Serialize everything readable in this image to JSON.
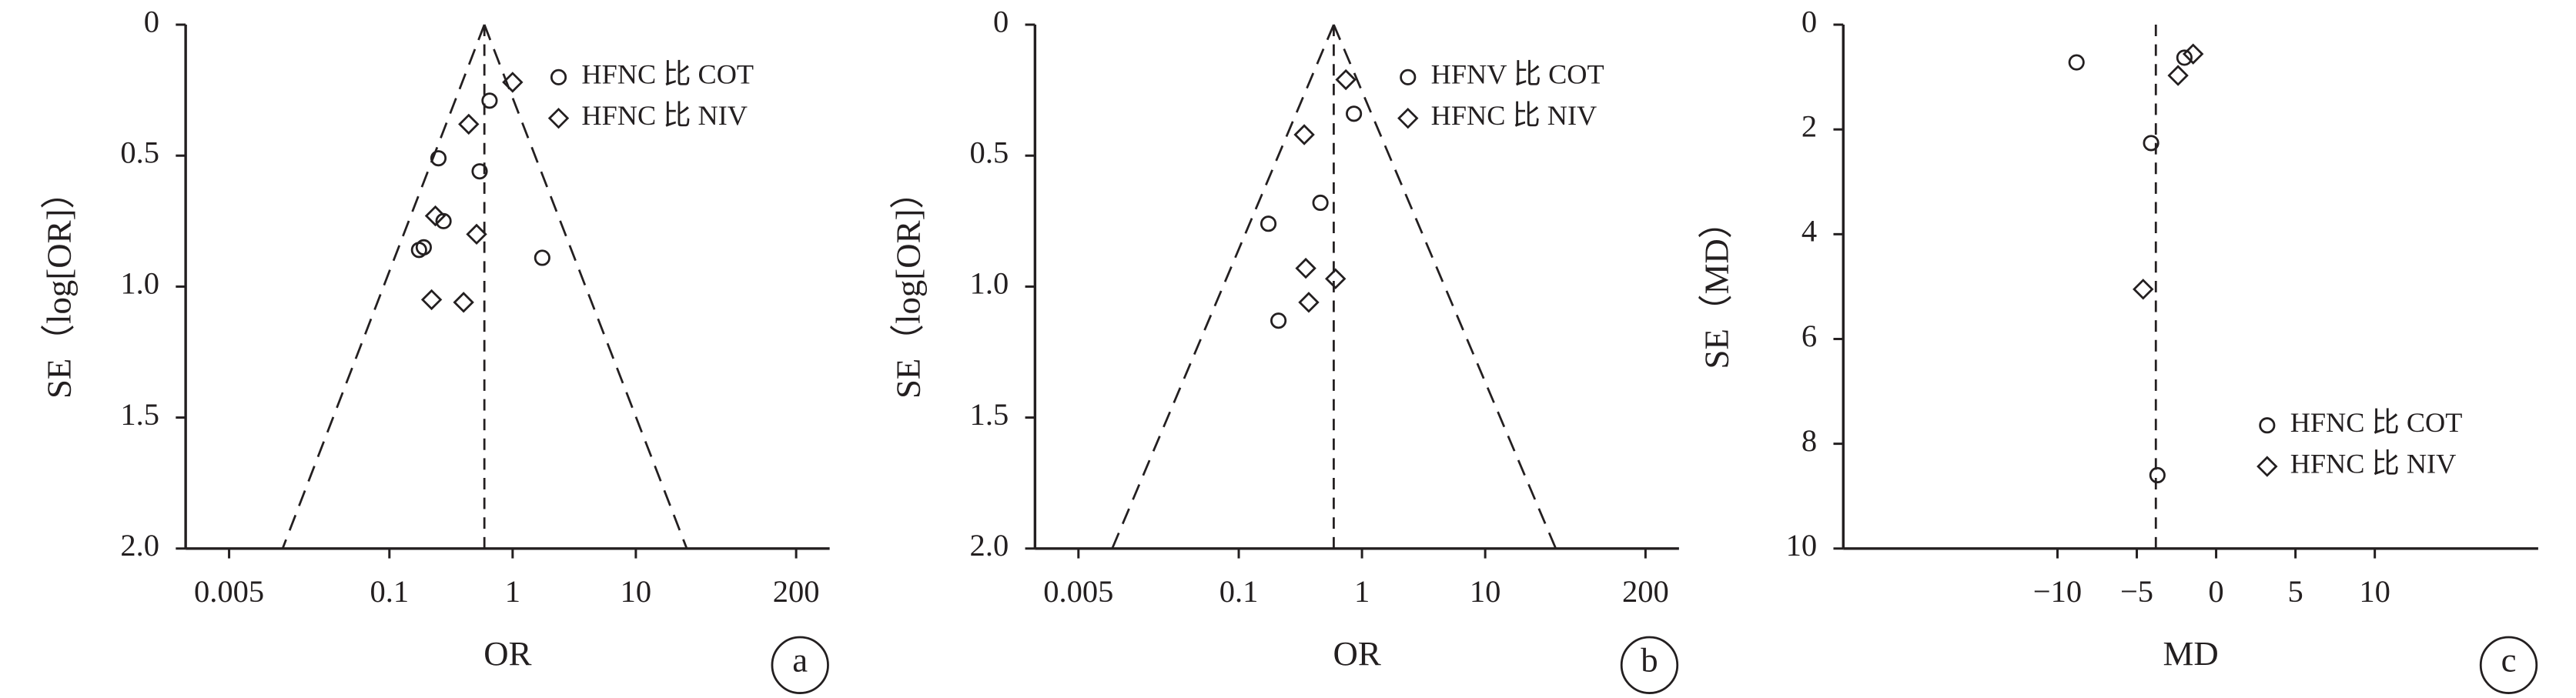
{
  "chart_data": [
    {
      "type": "scatter",
      "panel_label": "a",
      "xlabel": "OR",
      "ylabel": "SE（log[OR]）",
      "x_scale": "log",
      "y_inverted": true,
      "xlim": [
        0.00222,
        374
      ],
      "ylim": [
        0,
        2
      ],
      "xticks": [
        0.005,
        0.1,
        1,
        10,
        200
      ],
      "yticks": [
        0,
        0.5,
        {
          "value": 1,
          "label": "1.0"
        },
        1.5,
        {
          "value": 2,
          "label": "2.0"
        }
      ],
      "reference_line": 0.59,
      "funnel": [
        {
          "x": [
            0.59,
            0.0136
          ],
          "y": [
            0,
            2
          ]
        },
        {
          "x": [
            0.59,
            25.9
          ],
          "y": [
            0,
            2
          ]
        }
      ],
      "legend": "upper right",
      "series": [
        {
          "name": "HFNC 比 COT",
          "marker": "circle",
          "color": "#231f20",
          "x": [
            0.65,
            0.54,
            0.25,
            0.275,
            0.19,
            0.174,
            1.74
          ],
          "values": [
            0.29,
            0.56,
            0.51,
            0.75,
            0.85,
            0.86,
            0.89
          ]
        },
        {
          "name": "HFNC 比 NIV",
          "marker": "diamond",
          "color": "#231f20",
          "x": [
            1.0,
            0.44,
            0.236,
            0.51,
            0.22,
            0.4
          ],
          "values": [
            0.22,
            0.38,
            0.73,
            0.8,
            1.05,
            1.06
          ]
        }
      ]
    },
    {
      "type": "scatter",
      "panel_label": "b",
      "xlabel": "OR",
      "ylabel": "SE（log[OR]）",
      "x_scale": "log",
      "y_inverted": true,
      "xlim": [
        0.00222,
        374
      ],
      "ylim": [
        0,
        2
      ],
      "xticks": [
        0.005,
        0.1,
        1,
        10,
        200
      ],
      "yticks": [
        0,
        0.5,
        {
          "value": 1,
          "label": "1.0"
        },
        1.5,
        {
          "value": 2,
          "label": "2.0"
        }
      ],
      "reference_line": 0.59,
      "funnel": [
        {
          "x": [
            0.59,
            0.0094
          ],
          "y": [
            0,
            2
          ]
        },
        {
          "x": [
            0.59,
            37.4
          ],
          "y": [
            0,
            2
          ]
        }
      ],
      "legend": "upper right",
      "series": [
        {
          "name": "HFNV 比 COT",
          "marker": "circle",
          "color": "#231f20",
          "x": [
            0.86,
            0.46,
            0.174,
            0.21
          ],
          "values": [
            0.34,
            0.68,
            0.76,
            1.13
          ]
        },
        {
          "name": "HFNC 比 NIV",
          "marker": "diamond",
          "color": "#231f20",
          "x": [
            0.74,
            0.34,
            0.35,
            0.37,
            0.61
          ],
          "values": [
            0.21,
            0.42,
            0.93,
            1.06,
            0.97
          ]
        }
      ]
    },
    {
      "type": "scatter",
      "panel_label": "c",
      "xlabel": "MD",
      "ylabel": "SE（MD）",
      "x_scale": "linear",
      "y_inverted": true,
      "xlim": [
        -23.5,
        20.3
      ],
      "ylim": [
        0,
        10
      ],
      "xticks": [
        {
          "value": -10,
          "label": "−10"
        },
        {
          "value": -5,
          "label": "−5"
        },
        0,
        5,
        10
      ],
      "yticks": [
        0,
        2,
        4,
        6,
        8,
        10
      ],
      "reference_line": -3.8,
      "legend": "lower right",
      "series": [
        {
          "name": "HFNC 比 COT",
          "marker": "circle",
          "color": "#231f20",
          "x": [
            -8.8,
            -4.1,
            -3.7,
            -2.0
          ],
          "values": [
            0.72,
            2.26,
            8.6,
            0.63
          ]
        },
        {
          "name": "HFNC 比 NIV",
          "marker": "diamond",
          "color": "#231f20",
          "x": [
            -1.45,
            -2.4,
            -4.6
          ],
          "values": [
            0.56,
            0.97,
            5.05
          ]
        }
      ]
    }
  ]
}
